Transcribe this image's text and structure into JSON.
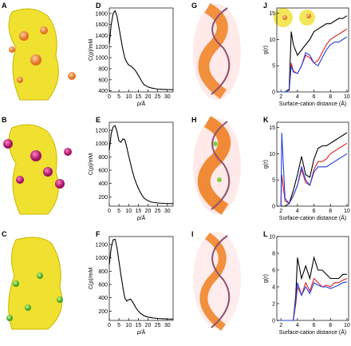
{
  "image_panels": [
    "A",
    "B",
    "C",
    "G",
    "H",
    "I"
  ],
  "chart_data": [
    {
      "type": "line",
      "panel": "D",
      "xlabel": "ρ/Å",
      "ylabel": "C(ρ)/mM",
      "color": "#000000",
      "x": [
        0,
        1,
        2,
        3,
        4,
        5,
        6,
        7,
        8,
        9,
        10,
        11,
        12,
        13,
        14,
        15,
        16,
        17,
        18,
        20,
        22,
        25,
        28,
        30,
        33
      ],
      "values": [
        1250,
        1600,
        1800,
        1850,
        1750,
        1550,
        1350,
        1150,
        1000,
        920,
        870,
        850,
        820,
        790,
        740,
        680,
        620,
        560,
        510,
        470,
        450,
        430,
        425,
        422,
        420
      ],
      "xlim": [
        0,
        33
      ],
      "xticks": [
        0,
        5,
        10,
        15,
        20,
        25,
        30
      ],
      "ylim": [
        380,
        1900
      ],
      "yticks": [
        400,
        600,
        800,
        1000,
        1200,
        1400,
        1600,
        1800
      ]
    },
    {
      "type": "line",
      "panel": "E",
      "xlabel": "ρ/Å",
      "ylabel": "C(ρ)/mM",
      "color": "#000000",
      "x": [
        0,
        1,
        2,
        3,
        4,
        5,
        6,
        7,
        8,
        9,
        10,
        11,
        12,
        13,
        14,
        15,
        16,
        17,
        18,
        20,
        22,
        25,
        28,
        30,
        33
      ],
      "values": [
        900,
        1150,
        1250,
        1270,
        1180,
        1040,
        1020,
        1070,
        1060,
        950,
        820,
        700,
        580,
        480,
        400,
        330,
        270,
        220,
        180,
        140,
        120,
        108,
        102,
        100,
        98
      ],
      "xlim": [
        0,
        33
      ],
      "xticks": [
        0,
        5,
        10,
        15,
        20,
        25,
        30
      ],
      "ylim": [
        60,
        1320
      ],
      "yticks": [
        200,
        400,
        600,
        800,
        1000,
        1200
      ]
    },
    {
      "type": "line",
      "panel": "F",
      "xlabel": "ρ/Å",
      "ylabel": "C(ρ)/mM",
      "color": "#000000",
      "x": [
        0,
        1,
        2,
        3,
        4,
        5,
        6,
        7,
        8,
        9,
        10,
        11,
        12,
        13,
        14,
        15,
        16,
        17,
        18,
        20,
        22,
        25,
        28,
        30,
        33
      ],
      "values": [
        900,
        1150,
        1270,
        1280,
        1150,
        950,
        750,
        560,
        400,
        350,
        370,
        380,
        340,
        290,
        240,
        200,
        170,
        150,
        130,
        110,
        100,
        90,
        85,
        82,
        80
      ],
      "xlim": [
        0,
        33
      ],
      "xticks": [
        0,
        5,
        10,
        15,
        20,
        25,
        30
      ],
      "ylim": [
        60,
        1320
      ],
      "yticks": [
        200,
        400,
        600,
        800,
        1000,
        1200
      ]
    },
    {
      "type": "line",
      "panel": "J",
      "xlabel": "Surface-cation distance (Å)",
      "ylabel": "g(r)",
      "x": [
        2,
        2.5,
        3,
        3.25,
        3.5,
        4,
        4.5,
        5,
        5.5,
        6,
        6.5,
        7,
        7.5,
        8,
        8.5,
        9,
        9.5,
        10
      ],
      "series": [
        {
          "color": "#000000",
          "values": [
            0,
            0,
            0.5,
            11.5,
            9,
            7,
            8,
            9,
            10,
            11.5,
            12,
            12.5,
            13,
            13,
            13.5,
            14,
            14,
            14.5
          ]
        },
        {
          "color": "#e02020",
          "values": [
            0,
            0,
            0.3,
            5.5,
            4,
            3.5,
            5,
            7,
            6.5,
            5.5,
            6,
            7.5,
            9,
            10,
            10.5,
            11,
            11.5,
            12
          ]
        },
        {
          "color": "#2040e0",
          "values": [
            0,
            0,
            0.3,
            5,
            3.8,
            3.5,
            5,
            7.5,
            7,
            5.5,
            5,
            6.5,
            8,
            9,
            9.5,
            9.5,
            10,
            10.5
          ]
        }
      ],
      "xlim": [
        1.5,
        10.2
      ],
      "xticks": [
        2,
        4,
        6,
        8,
        10
      ],
      "ylim": [
        0,
        16
      ],
      "yticks": [
        0,
        5,
        10,
        15
      ]
    },
    {
      "type": "line",
      "panel": "K",
      "xlabel": "Surface-cation distance (Å)",
      "ylabel": "g(r)",
      "x": [
        2,
        2.1,
        2.5,
        3,
        3.5,
        4,
        4.5,
        5,
        5.5,
        6,
        6.5,
        7,
        7.5,
        8,
        8.5,
        9,
        9.5,
        10
      ],
      "series": [
        {
          "color": "#000000",
          "values": [
            0,
            0,
            0,
            0.5,
            3,
            6,
            9.5,
            6,
            5.5,
            9,
            11,
            11.5,
            11.5,
            12,
            12.5,
            13,
            13.5,
            14
          ]
        },
        {
          "color": "#e02020",
          "values": [
            0,
            6,
            1,
            0.5,
            2,
            4,
            7,
            4.5,
            4,
            7,
            8.5,
            8.5,
            9,
            10,
            10.5,
            11,
            11.5,
            12
          ]
        },
        {
          "color": "#2040e0",
          "values": [
            0,
            14,
            1.5,
            0.5,
            2,
            4,
            7.5,
            5,
            4,
            6.5,
            7.5,
            7.5,
            7.5,
            8,
            8.5,
            9,
            9.5,
            10
          ]
        }
      ],
      "xlim": [
        1.5,
        10.2
      ],
      "xticks": [
        2,
        4,
        6,
        8,
        10
      ],
      "ylim": [
        0,
        16
      ],
      "yticks": [
        0,
        5,
        10,
        15
      ]
    },
    {
      "type": "line",
      "panel": "L",
      "xlabel": "Surface-cation distance (Å)",
      "ylabel": "g(r)",
      "x": [
        2,
        2.5,
        3,
        3.5,
        3.8,
        4,
        4.5,
        5,
        5.5,
        6,
        6.5,
        7,
        7.5,
        8,
        8.5,
        9,
        9.5,
        10
      ],
      "series": [
        {
          "color": "#000000",
          "values": [
            0,
            0,
            0,
            0,
            3,
            7.5,
            5,
            6.5,
            5,
            7.5,
            6,
            6,
            5.5,
            5,
            5,
            5,
            5.5,
            5.5
          ]
        },
        {
          "color": "#e02020",
          "values": [
            0,
            0,
            0,
            0,
            2,
            4,
            3,
            4.5,
            3.5,
            5,
            4.5,
            4,
            4.2,
            4,
            4.5,
            4.5,
            4.8,
            5
          ]
        },
        {
          "color": "#2040e0",
          "values": [
            0,
            0,
            0,
            0,
            2.5,
            4.5,
            3,
            4,
            3.2,
            4.5,
            4.2,
            4,
            4,
            3.8,
            4,
            4.2,
            4.5,
            4.6
          ]
        }
      ],
      "xlim": [
        1.5,
        10.2
      ],
      "xticks": [
        2,
        4,
        6,
        8,
        10
      ],
      "ylim": [
        0,
        10
      ],
      "yticks": [
        0,
        2,
        4,
        6,
        8,
        10
      ]
    }
  ]
}
